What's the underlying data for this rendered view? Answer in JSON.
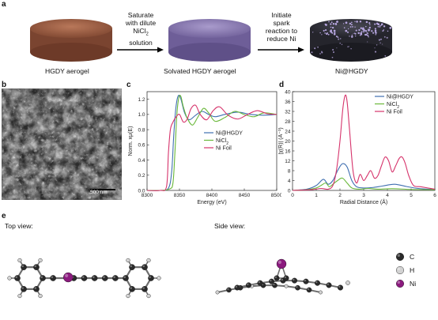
{
  "panels": {
    "a": "a",
    "b": "b",
    "c": "c",
    "d": "d",
    "e": "e"
  },
  "schematic": {
    "stages": [
      "HGDY aerogel",
      "Solvated HGDY aerogel",
      "Ni@HGDY"
    ],
    "step1_lines": [
      "Saturate",
      "with dilute",
      "NiCl",
      "solution"
    ],
    "step1_sub": "2",
    "step2_lines": [
      "Initiate",
      "spark",
      "reaction to",
      "reduce Ni"
    ],
    "colors": {
      "stage1": "#9a5a3e",
      "stage2": "#8a78b2",
      "stage3": "#2c2c34"
    }
  },
  "sem": {
    "scale_bar": "500 nm"
  },
  "chart_data": [
    {
      "type": "line",
      "panel": "c",
      "xlabel": "Energy (eV)",
      "ylabel": "Norm. xμ(E)",
      "xlim": [
        8300,
        8500
      ],
      "ylim": [
        0,
        1.3
      ],
      "xticks": [
        "8300",
        "8350",
        "8400",
        "8450",
        "8500"
      ],
      "yticks": [
        "0.0",
        "0.2",
        "0.4",
        "0.6",
        "0.8",
        "1.0",
        "1.2"
      ],
      "legend_position": "center-right",
      "series": [
        {
          "name": "Ni@HGDY",
          "color": "#3f6fb0",
          "x": [
            8300,
            8320,
            8333,
            8338,
            8341,
            8344,
            8347,
            8350,
            8353,
            8358,
            8365,
            8375,
            8385,
            8395,
            8405,
            8420,
            8440,
            8460,
            8480,
            8500
          ],
          "y": [
            0.0,
            0.0,
            0.03,
            0.25,
            0.7,
            1.05,
            1.22,
            1.25,
            1.18,
            1.02,
            0.93,
            0.99,
            1.04,
            1.0,
            0.97,
            1.0,
            1.03,
            1.0,
            0.99,
            1.0
          ]
        },
        {
          "name": "NiCl",
          "name_sub": "2",
          "color": "#6ab83a",
          "x": [
            8300,
            8320,
            8335,
            8340,
            8343,
            8346,
            8349,
            8352,
            8356,
            8362,
            8370,
            8378,
            8387,
            8395,
            8405,
            8420,
            8435,
            8450,
            8465,
            8480,
            8500
          ],
          "y": [
            0.0,
            0.0,
            0.02,
            0.1,
            0.5,
            1.0,
            1.22,
            1.24,
            1.1,
            0.95,
            0.86,
            0.96,
            1.08,
            1.02,
            0.91,
            0.96,
            1.04,
            1.0,
            0.97,
            1.02,
            1.0
          ]
        },
        {
          "name": "Ni Foil",
          "color": "#d6336b",
          "x": [
            8300,
            8320,
            8330,
            8333,
            8336,
            8340,
            8345,
            8350,
            8356,
            8362,
            8368,
            8375,
            8382,
            8392,
            8402,
            8412,
            8425,
            8440,
            8455,
            8470,
            8485,
            8500
          ],
          "y": [
            0.0,
            0.0,
            0.05,
            0.5,
            0.8,
            0.9,
            0.97,
            1.0,
            0.9,
            0.94,
            1.08,
            1.12,
            1.0,
            0.93,
            1.05,
            1.1,
            0.99,
            0.94,
            1.0,
            1.05,
            1.01,
            1.0
          ]
        }
      ]
    },
    {
      "type": "line",
      "panel": "d",
      "xlabel": "Radial Distance (Å)",
      "ylabel": "|χ(R)| (Å⁻³)",
      "xlim": [
        0,
        6
      ],
      "ylim": [
        0,
        40
      ],
      "xticks": [
        "0",
        "1",
        "2",
        "3",
        "4",
        "5",
        "6"
      ],
      "yticks": [
        "0",
        "4",
        "8",
        "12",
        "16",
        "20",
        "24",
        "28",
        "32",
        "36",
        "40"
      ],
      "legend_position": "top-right",
      "series": [
        {
          "name": "Ni@HGDY",
          "color": "#3f6fb0",
          "x": [
            0,
            0.6,
            1.0,
            1.3,
            1.5,
            1.7,
            1.9,
            2.1,
            2.3,
            2.5,
            2.7,
            3.0,
            3.4,
            3.8,
            4.3,
            4.8,
            5.3,
            6.0
          ],
          "y": [
            0,
            0.5,
            2,
            4.5,
            2.5,
            4,
            8,
            10.8,
            9.5,
            4,
            1.5,
            1,
            1.2,
            1.8,
            2.5,
            1.6,
            0.8,
            0.4
          ]
        },
        {
          "name": "NiCl",
          "name_sub": "2",
          "color": "#6ab83a",
          "x": [
            0,
            0.6,
            1.0,
            1.2,
            1.4,
            1.55,
            1.7,
            1.9,
            2.1,
            2.3,
            2.5,
            2.8,
            3.2,
            3.6,
            4.2,
            5.0,
            6.0
          ],
          "y": [
            0,
            0.3,
            1,
            2,
            3,
            1.5,
            2.5,
            4,
            5,
            3,
            1,
            0.5,
            0.8,
            0.5,
            0.7,
            0.4,
            0.3
          ]
        },
        {
          "name": "Ni Foil",
          "color": "#d6336b",
          "x": [
            0,
            0.8,
            1.2,
            1.5,
            1.7,
            1.85,
            2.0,
            2.12,
            2.22,
            2.3,
            2.4,
            2.55,
            2.7,
            2.85,
            3.0,
            3.15,
            3.3,
            3.45,
            3.6,
            3.75,
            3.9,
            4.05,
            4.2,
            4.35,
            4.5,
            4.62,
            4.75,
            4.9,
            5.1,
            5.4,
            5.7,
            6.0
          ],
          "y": [
            0,
            0.3,
            0.8,
            0.5,
            2,
            8,
            20,
            33,
            38.5,
            36,
            25,
            8,
            3,
            6.5,
            4,
            6,
            8,
            5,
            6,
            10,
            13.5,
            12,
            7.5,
            10,
            13,
            13.5,
            11,
            6,
            2,
            1.5,
            1,
            0.5
          ]
        }
      ]
    }
  ],
  "molecule": {
    "top_view_label": "Top view:",
    "side_view_label": "Side view:",
    "legend": [
      {
        "symbol": "C",
        "color": "#2a2a2a"
      },
      {
        "symbol": "H",
        "color": "#d2d2d2"
      },
      {
        "symbol": "Ni",
        "color": "#8b1a7e"
      }
    ]
  }
}
